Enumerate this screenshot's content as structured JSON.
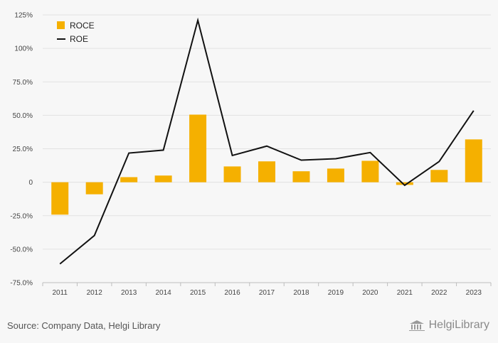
{
  "chart_data": {
    "type": "bar",
    "categories": [
      "2011",
      "2012",
      "2013",
      "2014",
      "2015",
      "2016",
      "2017",
      "2018",
      "2019",
      "2020",
      "2021",
      "2022",
      "2023"
    ],
    "series": [
      {
        "name": "ROCE",
        "kind": "bar",
        "color": "#f5b000",
        "values": [
          -24.2,
          -9.0,
          3.8,
          5.0,
          50.5,
          11.8,
          15.6,
          8.2,
          10.2,
          16.0,
          -2.0,
          9.2,
          32.0
        ]
      },
      {
        "name": "ROE",
        "kind": "line",
        "color": "#111111",
        "values": [
          -61.0,
          -39.8,
          21.8,
          24.0,
          121.0,
          20.0,
          27.0,
          16.5,
          17.6,
          22.2,
          -2.3,
          15.5,
          53.5
        ]
      }
    ],
    "yticks": [
      "125%",
      "100%",
      "75.0%",
      "50.0%",
      "25.0%",
      "0",
      "-25.0%",
      "-50.0%",
      "-75.0%"
    ],
    "ytick_values": [
      125,
      100,
      75,
      50,
      25,
      0,
      -25,
      -50,
      -75
    ],
    "ylim": [
      -75,
      125
    ],
    "grid": true,
    "legend_position": "top-left"
  },
  "footer": {
    "source": "Source: Company Data, Helgi Library",
    "brand": "HelgiLibrary",
    "brand_icon": "library-building-icon"
  }
}
